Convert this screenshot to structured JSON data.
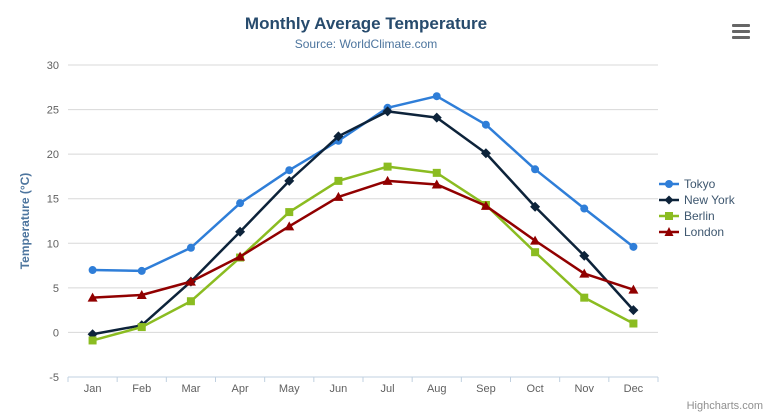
{
  "header": {
    "title": "Monthly Average Temperature",
    "subtitle": "Source: WorldClimate.com"
  },
  "credits_label": "Highcharts.com",
  "export_icon": "hamburger-icon",
  "colors": {
    "title": "#274b6d",
    "subtitle": "#4d759e",
    "axis_title": "#4d759e",
    "axis_labels": "#606060",
    "legend_text": "#3E576F",
    "gridline": "#D8D8D8",
    "axis_line": "#C0D0E0",
    "credits": "#909090"
  },
  "chart_data": {
    "type": "line",
    "title": "Monthly Average Temperature",
    "subtitle": "Source: WorldClimate.com",
    "categories": [
      "Jan",
      "Feb",
      "Mar",
      "Apr",
      "May",
      "Jun",
      "Jul",
      "Aug",
      "Sep",
      "Oct",
      "Nov",
      "Dec"
    ],
    "xlabel": "",
    "ylabel": "Temperature (°C)",
    "ylim": [
      -5,
      30
    ],
    "ytick_interval": 5,
    "yticks": [
      -5,
      0,
      5,
      10,
      15,
      20,
      25,
      30
    ],
    "grid": true,
    "legend_position": "right",
    "series": [
      {
        "name": "Tokyo",
        "color": "#2f7ed8",
        "marker": "circle",
        "values": [
          7.0,
          6.9,
          9.5,
          14.5,
          18.2,
          21.5,
          25.2,
          26.5,
          23.3,
          18.3,
          13.9,
          9.6
        ]
      },
      {
        "name": "New York",
        "color": "#0d233a",
        "marker": "diamond",
        "values": [
          -0.2,
          0.8,
          5.7,
          11.3,
          17.0,
          22.0,
          24.8,
          24.1,
          20.1,
          14.1,
          8.6,
          2.5
        ]
      },
      {
        "name": "Berlin",
        "color": "#8bbc21",
        "marker": "square",
        "values": [
          -0.9,
          0.6,
          3.5,
          8.4,
          13.5,
          17.0,
          18.6,
          17.9,
          14.3,
          9.0,
          3.9,
          1.0
        ]
      },
      {
        "name": "London",
        "color": "#910000",
        "marker": "triangle",
        "values": [
          3.9,
          4.2,
          5.7,
          8.5,
          11.9,
          15.2,
          17.0,
          16.6,
          14.2,
          10.3,
          6.6,
          4.8
        ]
      }
    ]
  }
}
